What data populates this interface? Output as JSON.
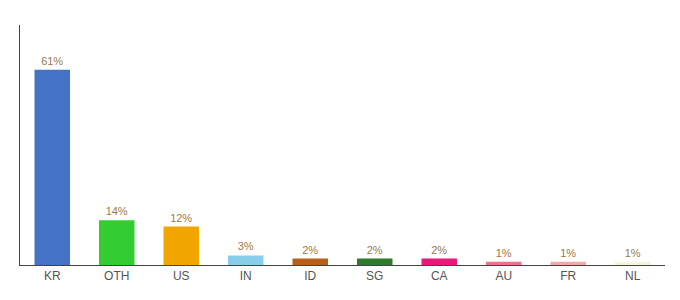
{
  "chart_data": {
    "type": "bar",
    "categories": [
      "KR",
      "OTH",
      "US",
      "IN",
      "ID",
      "SG",
      "CA",
      "AU",
      "FR",
      "NL"
    ],
    "values": [
      61,
      14,
      12,
      3,
      2,
      2,
      2,
      1,
      1,
      1
    ],
    "value_labels": [
      "61%",
      "14%",
      "12%",
      "3%",
      "2%",
      "2%",
      "2%",
      "1%",
      "1%",
      "1%"
    ],
    "colors": [
      "#4472c4",
      "#33cc33",
      "#f0a500",
      "#87ceeb",
      "#b8601a",
      "#2d7a2d",
      "#e6197a",
      "#f07090",
      "#f5a8a8",
      "#f5f5d8"
    ],
    "ylim": [
      0,
      75
    ],
    "data_labels": true,
    "tick_labels": "x",
    "grid": false
  }
}
